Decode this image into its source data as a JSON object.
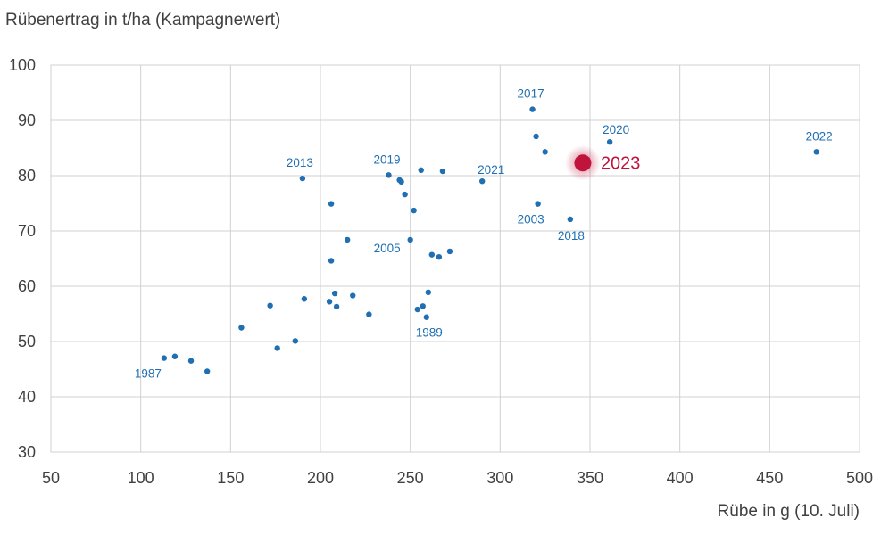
{
  "chart_data": {
    "type": "scatter",
    "ylabel": "Rübenertrag in t/ha (Kampagnewert)",
    "xlabel": "Rübe in g (10. Juli)",
    "xlim": [
      50,
      500
    ],
    "ylim": [
      30,
      100
    ],
    "xticks": [
      50,
      100,
      150,
      200,
      250,
      300,
      350,
      400,
      450,
      500
    ],
    "yticks": [
      30,
      40,
      50,
      60,
      70,
      80,
      90,
      100
    ],
    "grid": true,
    "colors": {
      "points": "#1f6fb2",
      "highlight": "#c0143c",
      "grid": "#d0d0d0",
      "axis_text": "#404040"
    },
    "points": [
      {
        "x": 113,
        "y": 47.0,
        "label": "1987"
      },
      {
        "x": 119,
        "y": 47.3
      },
      {
        "x": 128,
        "y": 46.5
      },
      {
        "x": 137,
        "y": 44.6
      },
      {
        "x": 156,
        "y": 52.5
      },
      {
        "x": 172,
        "y": 56.5
      },
      {
        "x": 176,
        "y": 48.8
      },
      {
        "x": 186,
        "y": 50.1
      },
      {
        "x": 190,
        "y": 79.5,
        "label": "2013"
      },
      {
        "x": 191,
        "y": 57.7
      },
      {
        "x": 205,
        "y": 57.2
      },
      {
        "x": 206,
        "y": 64.6
      },
      {
        "x": 206,
        "y": 74.9
      },
      {
        "x": 208,
        "y": 58.7
      },
      {
        "x": 209,
        "y": 56.3
      },
      {
        "x": 215,
        "y": 68.4
      },
      {
        "x": 218,
        "y": 58.3
      },
      {
        "x": 227,
        "y": 54.9
      },
      {
        "x": 238,
        "y": 80.1,
        "label": "2019"
      },
      {
        "x": 244,
        "y": 79.2
      },
      {
        "x": 245,
        "y": 78.9
      },
      {
        "x": 247,
        "y": 76.6
      },
      {
        "x": 250,
        "y": 68.4,
        "label": "2005"
      },
      {
        "x": 252,
        "y": 73.7
      },
      {
        "x": 254,
        "y": 55.8
      },
      {
        "x": 256,
        "y": 81.0
      },
      {
        "x": 257,
        "y": 56.4
      },
      {
        "x": 259,
        "y": 54.4,
        "label": "1989"
      },
      {
        "x": 260,
        "y": 58.9
      },
      {
        "x": 262,
        "y": 65.7
      },
      {
        "x": 266,
        "y": 65.3
      },
      {
        "x": 268,
        "y": 80.8
      },
      {
        "x": 272,
        "y": 66.3
      },
      {
        "x": 290,
        "y": 79.0,
        "label": "2021"
      },
      {
        "x": 318,
        "y": 92.0,
        "label": "2017"
      },
      {
        "x": 320,
        "y": 87.1
      },
      {
        "x": 321,
        "y": 74.9,
        "label": "2003"
      },
      {
        "x": 325,
        "y": 84.3
      },
      {
        "x": 339,
        "y": 72.1,
        "label": "2018"
      },
      {
        "x": 361,
        "y": 86.1,
        "label": "2020"
      },
      {
        "x": 476,
        "y": 84.3,
        "label": "2022"
      }
    ],
    "highlight": {
      "x": 346,
      "y": 82.3,
      "label": "2023"
    }
  }
}
